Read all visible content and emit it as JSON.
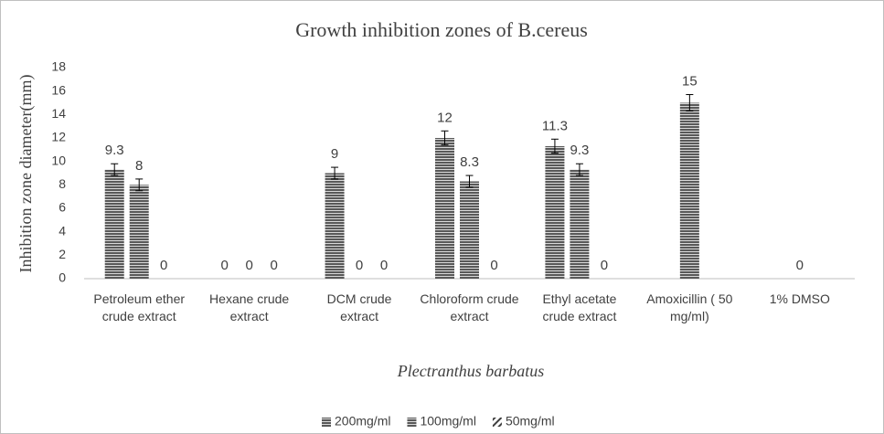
{
  "chart_data": {
    "type": "bar",
    "title": "Growth inhibition zones of B.cereus",
    "x_label": "Plectranthus barbatus",
    "y_label": "Inhibition zone diameter(mm)",
    "categories": [
      "Petroleum ether crude extract",
      "Hexane crude extract",
      "DCM crude extract",
      "Chloroform crude extract",
      "Ethyl acetate crude extract",
      "Amoxicillin ( 50 mg/ml)",
      "1% DMSO"
    ],
    "series": [
      {
        "name": "200mg/ml",
        "color": "#595959",
        "pattern": "horizontal",
        "values": [
          9.3,
          0,
          9,
          12,
          11.3,
          null,
          null
        ],
        "errors": [
          0.5,
          null,
          0.5,
          0.6,
          0.6,
          null,
          null
        ]
      },
      {
        "name": "100mg/ml",
        "color": "#595959",
        "pattern": "horizontal",
        "values": [
          8,
          0,
          0,
          8.3,
          9.3,
          15,
          0
        ],
        "errors": [
          0.5,
          null,
          null,
          0.5,
          0.5,
          0.7,
          null
        ]
      },
      {
        "name": "50mg/ml",
        "color": "#404040",
        "pattern": "diagonal",
        "values": [
          0,
          0,
          0,
          0,
          0,
          null,
          null
        ],
        "errors": [
          null,
          null,
          null,
          null,
          null,
          null,
          null
        ]
      }
    ],
    "ylim": [
      0,
      18
    ],
    "yticks": [
      0,
      2,
      4,
      6,
      8,
      10,
      12,
      14,
      16,
      18
    ],
    "legend": "bottom"
  }
}
